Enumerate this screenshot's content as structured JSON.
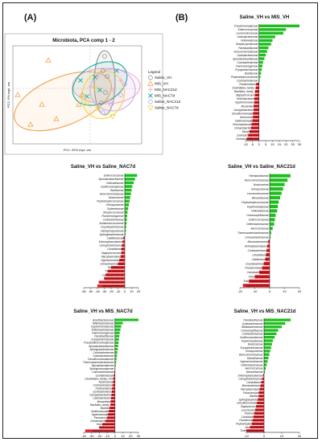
{
  "panels": {
    "a": "(A)",
    "b": "(B)"
  },
  "pca": {
    "title": "Microbiota, PCA comp 1 - 2",
    "xlabel": "PC1: 20% expl. var",
    "ylabel": "PC2: 9% expl. var",
    "legend_title": "Legend",
    "groups": [
      {
        "name": "Saline_VH",
        "color": "#8e8e8e",
        "marker": "circle"
      },
      {
        "name": "MIS_VH",
        "color": "#f5a14a",
        "marker": "triangle"
      },
      {
        "name": "MIS_NAC21d",
        "color": "#f2a8c9",
        "marker": "plus"
      },
      {
        "name": "MIS_NAC7d",
        "color": "#15a89a",
        "marker": "cross"
      },
      {
        "name": "Saline_NAC21d",
        "color": "#c9aaf0",
        "marker": "diamond"
      },
      {
        "name": "Saline_NAC7d",
        "color": "#f2d34b",
        "marker": "nabla"
      }
    ]
  },
  "chart_data": [
    {
      "type": "bar",
      "title": "Saline_VH vs MIS_VH",
      "xlim": [
        -10,
        30
      ],
      "xticks": [
        -10,
        -5,
        0,
        5,
        10,
        15,
        20,
        25,
        30
      ],
      "categories": [
        "Pseudomonadaceae",
        "Enterococcaceae",
        "Leuconostocaceae",
        "Oxalobacteraceae",
        "Veillonellaceae",
        "Streptomycetaceae",
        "Paenibacillaceae",
        "Verrucomicrobiaceae",
        "Oxalobacteraceae",
        "Sporolactobacillaceae",
        "Coriobacteriaceae",
        "Flammeovirgaceae",
        "Erysipelotrichaceae",
        "Bacillaceae",
        "Peptostreptococcaceae",
        "Cyclobacteriaceae",
        "Pasteurellaceae",
        "Clostridiales_family_XI",
        "Bacillales_family_XII",
        "Staphylococcaceae",
        "Helicobacteraceae",
        "Hyphomicrobiaceae",
        "Moraxellaceae",
        "Campylobacteraceae",
        "Desulfuromonadaceae",
        "Aerococcaceae",
        "Xanthomonadaceae",
        "Entomoplasmataceae",
        "Cohaesibacteraceae",
        "Kiloniellaceae",
        "Caviobacteriaceae",
        "Oceanospirillaceae"
      ],
      "values": [
        30,
        20,
        18,
        12,
        10,
        9,
        7,
        6,
        5,
        4,
        3,
        2.5,
        2,
        1.5,
        1,
        0.5,
        -2,
        -2.5,
        -3,
        -3,
        -3.5,
        -3.5,
        -4,
        -4,
        -4.5,
        -4.5,
        -5,
        -5.5,
        -6,
        -7,
        -8,
        -9
      ]
    },
    {
      "type": "bar",
      "title": "Saline_VH vs Saline_NAC7d",
      "xlim": [
        -60,
        20
      ],
      "xticks": [
        -60,
        -50,
        -40,
        -30,
        -20,
        -10,
        0,
        10,
        20
      ],
      "categories": [
        "Enterococcaceae",
        "Sporolactobacillaceae",
        "Veillonellaceae",
        "Xanthomonadaceae",
        "Bacillaceae",
        "Verrucomicrobiaceae",
        "Nostocaceae",
        "Peptostreptococcaceae",
        "Holosporaceae",
        "Sutterellaceae",
        "Streptococcaceae",
        "Flammeovirgaceae",
        "Coriobacteriaceae",
        "Acidaminococcaceae",
        "Corynebacteriaceae",
        "Halospirosporaceae",
        "Sphingobacteriaceae",
        "Caldilineaceae",
        "Entomoplasmataceae",
        "Campylobacteraceae",
        "Clostridiaceae",
        "Staphylococcaceae",
        "Mycoplasmataceae",
        "Hyphomicrobiaceae",
        "Cohaesibacteraceae",
        "Kiloniellaceae",
        "Pasteurellaceae",
        "Carnobacteriaceae",
        "Parvularculaceae",
        "Pseudomonadaceae",
        "Microbacteriaceae"
      ],
      "values": [
        18,
        15,
        13,
        11,
        10,
        9,
        8,
        7,
        6,
        5,
        4,
        3.5,
        3,
        2.5,
        2,
        1.5,
        1,
        -2,
        -3,
        -4,
        -5,
        -5,
        -6,
        -8,
        -10,
        -20,
        -25,
        -28,
        -30,
        -38,
        -40
      ]
    },
    {
      "type": "bar",
      "title": "Saline_VH vs Saline_NAC21d",
      "xlim": [
        -20,
        20
      ],
      "xticks": [
        -20,
        -10,
        0,
        10,
        20
      ],
      "categories": [
        "Paenibacillaceae",
        "Verrucomicrobiaceae",
        "Nostocaceae",
        "Holosporaceae",
        "Leuconostocaceae",
        "Moraxellaceae",
        "Peptostreptococcaceae",
        "Kopriimonadaceae",
        "Veillonellaceae",
        "Oceanospirillaceae",
        "Enterococcaceae",
        "Deferribacteraceae",
        "Aerococcaceae",
        "Thermoanaerobacteraceae",
        "Cohaesibacteraceae",
        "Microbacteriaceae",
        "Acholeplasmataceae",
        "Coriobacteriaceae",
        "Clostridiaceae",
        "Caldilineaceae",
        "Corynebacteriaceae",
        "Pseudomonadaceae",
        "Carnobacteriaceae",
        "Parvularculaceae",
        "Entomoplasmataceae",
        "Hyphomicrobiaceae"
      ],
      "values": [
        14,
        12,
        10,
        9,
        8,
        7,
        6,
        5.5,
        5,
        4,
        3.5,
        3,
        2,
        1,
        0.5,
        -1,
        -1.5,
        -2,
        -2.5,
        -3,
        -4,
        -5,
        -7,
        -10,
        -14,
        -18
      ]
    },
    {
      "type": "bar",
      "title": "Saline_VH vs MIS_NAC7d",
      "xlim": [
        -40,
        30
      ],
      "xticks": [
        -40,
        -30,
        -20,
        -10,
        0,
        10,
        20,
        30
      ],
      "categories": [
        "Gracilibacteraceae",
        "Bifidobacteriaceae",
        "Hyphomicrobiaceae",
        "Enterobacteriaceae",
        "Flammeovirgaceae",
        "Paenibacillaceae",
        "Erysipelotrichaceae",
        "Pseudoalteromonadaceae",
        "Sporolactobacillaceae",
        "Sphingobacteriaceae",
        "Coriobacteriaceae",
        "Oxalobacteraceae",
        "Desulfuromonadaceae",
        "Thermoanaerobacteraceae",
        "Mycoplasmataceae",
        "Sphingomonadaceae",
        "Carnobacteriaceae",
        "Oscillatoriaceae",
        "Clostridiales_family_XVIII",
        "Nostocaceae",
        "Coriobacteriaceae",
        "Pasteurellaceae",
        "Cyclobacteriaceae",
        "Campylobacteraceae",
        "Caulobacteraceae",
        "Moraxellaceae",
        "Bacillales_family_XII",
        "Bacillaceae",
        "Xanthomonadaceae",
        "Hyphomonadaceae",
        "Parvularculaceae",
        "Cohaesibacteraceae",
        "Holosporaceae",
        "Nostocaceae",
        "Kopriimonadaceae"
      ],
      "values": [
        30,
        10,
        8,
        7,
        6,
        5.5,
        5,
        4.5,
        4,
        3.5,
        3,
        2.5,
        2,
        1.5,
        1,
        0.5,
        -1,
        -1.5,
        -2,
        -2.5,
        -3,
        -3.5,
        -4,
        -4.5,
        -5,
        -5.5,
        -6,
        -7,
        -8,
        -9,
        -10,
        -12,
        -16,
        -20,
        -38
      ]
    },
    {
      "type": "bar",
      "title": "Saline_VH vs MIS_NAC21d",
      "xlim": [
        -10,
        20
      ],
      "xticks": [
        -10,
        0,
        10,
        20
      ],
      "categories": [
        "Paenibacillaceae",
        "Oxalobacteraceae",
        "Bifidobacteriaceae",
        "Oceanospirillaceae",
        "Coriobacteriaceae",
        "Xanthomonadaceae",
        "Kopriimonadaceae",
        "Nostocaceae",
        "Erysipelotrichaceae",
        "Holosporaceae",
        "Verrucomicrobiaceae",
        "Kiloniellaceae",
        "Hyphomicrobiaceae",
        "Deferribacteraceae",
        "Aerococcaceae",
        "Moraxellaceae",
        "Entomoplasmataceae",
        "Campylobacteraceae",
        "Clostridiaceae",
        "Microbacteriaceae",
        "Mycoplasmataceae",
        "Parvularculaceae",
        "Bacillaceae",
        "Sphingobacteriaceae",
        "Desulfuromonadaceae",
        "Staphylococcaceae",
        "Leuconostocaceae",
        "Pasteurellaceae",
        "Carnobacteriaceae",
        "Pseudomonadaceae",
        "Peptostreptococcaceae",
        "Aerococcaceae",
        "Enterobacteriaceae"
      ],
      "values": [
        15,
        12,
        10,
        8,
        7,
        6,
        5,
        4.5,
        4,
        3.5,
        3,
        2.5,
        2,
        1.5,
        1,
        0.5,
        -0.5,
        -1,
        -1.5,
        -2,
        -2.5,
        -3,
        -3,
        -3.5,
        -4,
        -4.5,
        -5,
        -5.5,
        -6,
        -6.5,
        -7,
        -8,
        -10
      ]
    }
  ]
}
